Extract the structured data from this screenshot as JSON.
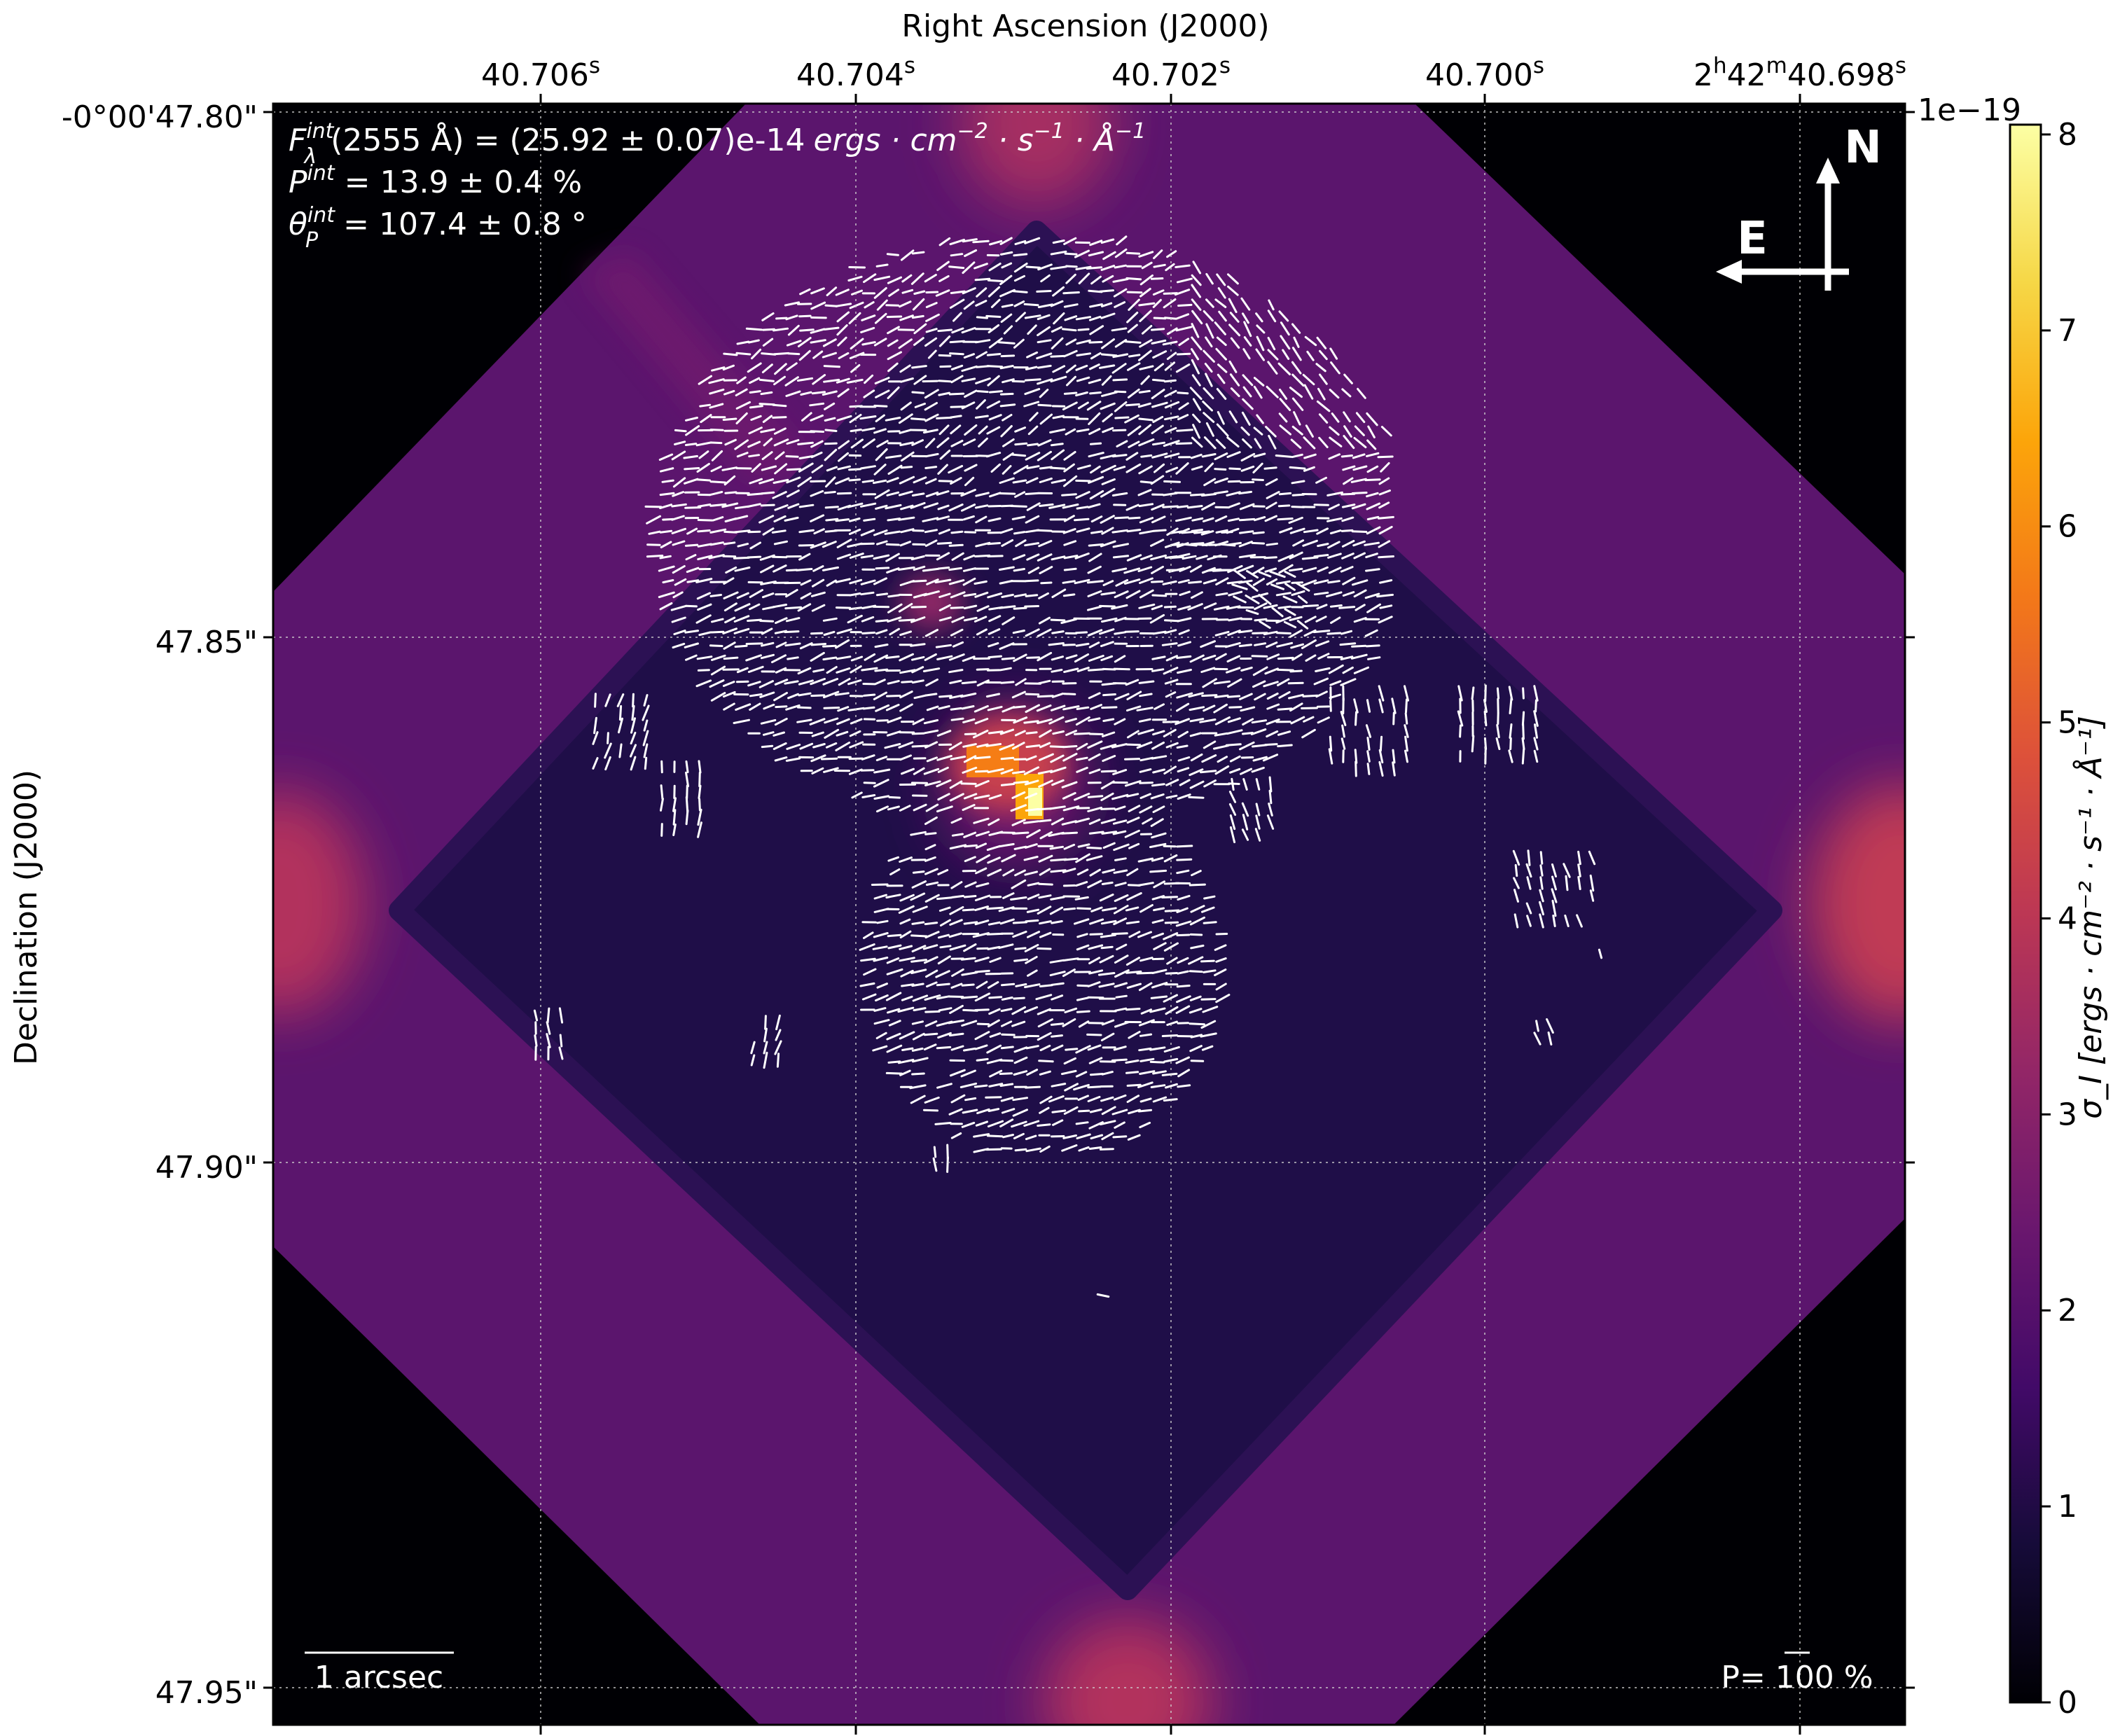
{
  "chart_data": {
    "type": "heatmap",
    "title": "",
    "xlabel": "Right Ascension (J2000)",
    "ylabel": "Declination (J2000)",
    "x_ticks": [
      {
        "pre": "40.706",
        "sup": "s"
      },
      {
        "pre": "40.704",
        "sup": "s"
      },
      {
        "pre": "40.702",
        "sup": "s"
      },
      {
        "pre": "40.700",
        "sup": "s"
      },
      {
        "parts": [
          [
            "2",
            false
          ],
          [
            "h",
            true
          ],
          [
            "42",
            false
          ],
          [
            "m",
            true
          ],
          [
            "40.698",
            false
          ],
          [
            "s",
            true
          ]
        ]
      }
    ],
    "y_ticks": [
      "-0°00'47.80\"",
      "47.85\"",
      "47.90\"",
      "47.95\""
    ],
    "x_range_s": [
      40.7076,
      40.6973
    ],
    "y_range_arcsec": [
      47.8,
      47.95
    ],
    "grid": true,
    "colormap": "inferno",
    "colorbar": {
      "label": "σ_I [ergs · cm⁻² · s⁻¹ · Å⁻¹]",
      "ticks": [
        "0",
        "1",
        "2",
        "3",
        "4",
        "5",
        "6",
        "7",
        "8"
      ],
      "range": [
        0,
        8.05
      ],
      "offset": "1e−19"
    },
    "annotations": {
      "flux": "F_λ^int(2555 Å) = (25.92 ± 0.07)e-14 ergs · cm⁻² · s⁻¹ · Å⁻¹",
      "flux_main": "(2555 Å) = (25.92 ± 0.07)e-14",
      "flux_units": "ergs · cm",
      "pol_degree": "P^int = 13.9 ± 0.4 %",
      "pol_degree_tail": " = 13.9 ± 0.4 %",
      "pol_angle": "θ_P^int = 107.4 ± 0.8 °",
      "pol_angle_tail": " = 107.4 ± 0.8 °",
      "compass_north": "N",
      "compass_east": "E",
      "scale_bar": "1 arcsec",
      "pol_scale": "P= 100 %"
    },
    "field_levels": {
      "background": 0,
      "frame": 2.1,
      "inner_region": 1.0,
      "edge_bright_spots": 3.8,
      "nucleus_peak": 8.0,
      "nucleus_secondary": 6.5,
      "knot_north": 3.2
    }
  }
}
